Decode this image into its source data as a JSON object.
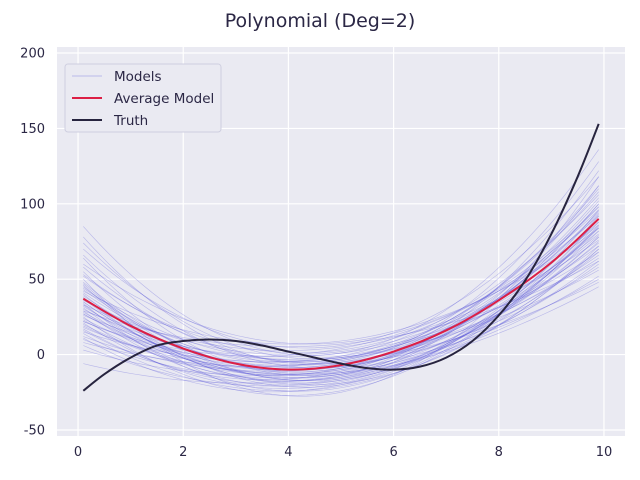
{
  "chart_data": {
    "type": "line",
    "title": "Polynomial (Deg=2)",
    "xlabel": "",
    "ylabel": "",
    "xlim": [
      -0.4,
      10.4
    ],
    "ylim": [
      -54,
      204
    ],
    "xticks": [
      0,
      2,
      4,
      6,
      8,
      10
    ],
    "yticks": [
      -50,
      0,
      50,
      100,
      150,
      200
    ],
    "grid": true,
    "legend": {
      "placement": "top-left",
      "entries": [
        "Models",
        "Average Model",
        "Truth"
      ]
    },
    "colors": {
      "background": "#eaeaf2",
      "grid": "#ffffff",
      "models": "#4a47d6",
      "average": "#dc1f45",
      "truth": "#27243f"
    },
    "series": [
      {
        "name": "Average Model",
        "x": [
          0.1,
          1,
          2,
          3,
          4,
          5,
          6,
          7,
          8,
          9,
          9.9
        ],
        "y": [
          37,
          19,
          4,
          -6,
          -10,
          -7,
          2,
          16,
          36,
          61,
          90
        ]
      },
      {
        "name": "Truth",
        "x": [
          0.1,
          0.5,
          1,
          1.5,
          2,
          2.5,
          3,
          3.5,
          4,
          4.5,
          5,
          5.5,
          6,
          6.5,
          7,
          7.5,
          8,
          8.5,
          9,
          9.5,
          9.9
        ],
        "y": [
          -24,
          -13,
          -2,
          6,
          9,
          10,
          9,
          6,
          2,
          -2,
          -6,
          -9,
          -10,
          -8,
          -2,
          9,
          26,
          49,
          80,
          118,
          153
        ]
      }
    ],
    "models": [
      {
        "x": [
          0.1,
          5.0,
          9.9
        ],
        "y": [
          37,
          -7,
          90
        ]
      },
      {
        "x": [
          0.1,
          5.0,
          9.9
        ],
        "y": [
          85,
          1,
          136
        ]
      },
      {
        "x": [
          0.1,
          5.0,
          9.9
        ],
        "y": [
          78,
          -5,
          128
        ]
      },
      {
        "x": [
          0.1,
          5.0,
          9.9
        ],
        "y": [
          70,
          6,
          118
        ]
      },
      {
        "x": [
          0.1,
          5.0,
          9.9
        ],
        "y": [
          64,
          -12,
          122
        ]
      },
      {
        "x": [
          0.1,
          5.0,
          9.9
        ],
        "y": [
          58,
          -3,
          108
        ]
      },
      {
        "x": [
          0.1,
          5.0,
          9.9
        ],
        "y": [
          55,
          -15,
          112
        ]
      },
      {
        "x": [
          0.1,
          5.0,
          9.9
        ],
        "y": [
          52,
          3,
          98
        ]
      },
      {
        "x": [
          0.1,
          5.0,
          9.9
        ],
        "y": [
          48,
          -9,
          104
        ]
      },
      {
        "x": [
          0.1,
          5.0,
          9.9
        ],
        "y": [
          46,
          -20,
          96
        ]
      },
      {
        "x": [
          0.1,
          5.0,
          9.9
        ],
        "y": [
          44,
          -2,
          88
        ]
      },
      {
        "x": [
          0.1,
          5.0,
          9.9
        ],
        "y": [
          42,
          9,
          84
        ]
      },
      {
        "x": [
          0.1,
          5.0,
          9.9
        ],
        "y": [
          40,
          -13,
          100
        ]
      },
      {
        "x": [
          0.1,
          5.0,
          9.9
        ],
        "y": [
          39,
          -6,
          93
        ]
      },
      {
        "x": [
          0.1,
          5.0,
          9.9
        ],
        "y": [
          38,
          -17,
          86
        ]
      },
      {
        "x": [
          0.1,
          5.0,
          9.9
        ],
        "y": [
          36,
          2,
          80
        ]
      },
      {
        "x": [
          0.1,
          5.0,
          9.9
        ],
        "y": [
          35,
          -10,
          95
        ]
      },
      {
        "x": [
          0.1,
          5.0,
          9.9
        ],
        "y": [
          34,
          -22,
          90
        ]
      },
      {
        "x": [
          0.1,
          5.0,
          9.9
        ],
        "y": [
          33,
          5,
          76
        ]
      },
      {
        "x": [
          0.1,
          5.0,
          9.9
        ],
        "y": [
          32,
          -8,
          84
        ]
      },
      {
        "x": [
          0.1,
          5.0,
          9.9
        ],
        "y": [
          31,
          -14,
          102
        ]
      },
      {
        "x": [
          0.1,
          5.0,
          9.9
        ],
        "y": [
          30,
          -1,
          72
        ]
      },
      {
        "x": [
          0.1,
          5.0,
          9.9
        ],
        "y": [
          29,
          -18,
          92
        ]
      },
      {
        "x": [
          0.1,
          5.0,
          9.9
        ],
        "y": [
          28,
          -4,
          82
        ]
      },
      {
        "x": [
          0.1,
          5.0,
          9.9
        ],
        "y": [
          27,
          -11,
          75
        ]
      },
      {
        "x": [
          0.1,
          5.0,
          9.9
        ],
        "y": [
          26,
          1,
          68
        ]
      },
      {
        "x": [
          0.1,
          5.0,
          9.9
        ],
        "y": [
          25,
          -24,
          88
        ]
      },
      {
        "x": [
          0.1,
          5.0,
          9.9
        ],
        "y": [
          24,
          -7,
          79
        ]
      },
      {
        "x": [
          0.1,
          5.0,
          9.9
        ],
        "y": [
          23,
          -15,
          70
        ]
      },
      {
        "x": [
          0.1,
          5.0,
          9.9
        ],
        "y": [
          22,
          -3,
          64
        ]
      },
      {
        "x": [
          0.1,
          5.0,
          9.9
        ],
        "y": [
          21,
          -19,
          85
        ]
      },
      {
        "x": [
          0.1,
          5.0,
          9.9
        ],
        "y": [
          20,
          -9,
          74
        ]
      },
      {
        "x": [
          0.1,
          5.0,
          9.9
        ],
        "y": [
          19,
          -12,
          60
        ]
      },
      {
        "x": [
          0.1,
          5.0,
          9.9
        ],
        "y": [
          18,
          -6,
          66
        ]
      },
      {
        "x": [
          0.1,
          5.0,
          9.9
        ],
        "y": [
          17,
          -16,
          78
        ]
      },
      {
        "x": [
          0.1,
          5.0,
          9.9
        ],
        "y": [
          15,
          -2,
          56
        ]
      },
      {
        "x": [
          0.1,
          5.0,
          9.9
        ],
        "y": [
          14,
          -21,
          70
        ]
      },
      {
        "x": [
          0.1,
          5.0,
          9.9
        ],
        "y": [
          12,
          -8,
          58
        ]
      },
      {
        "x": [
          0.1,
          5.0,
          9.9
        ],
        "y": [
          10,
          -13,
          52
        ]
      },
      {
        "x": [
          0.1,
          5.0,
          9.9
        ],
        "y": [
          8,
          -5,
          48
        ]
      },
      {
        "x": [
          0.1,
          5.0,
          9.9
        ],
        "y": [
          6,
          -17,
          62
        ]
      },
      {
        "x": [
          0.1,
          5.0,
          9.9
        ],
        "y": [
          3,
          -10,
          50
        ]
      },
      {
        "x": [
          0.1,
          5.0,
          9.9
        ],
        "y": [
          -6,
          -14,
          45
        ]
      },
      {
        "x": [
          0.1,
          5.0,
          9.9
        ],
        "y": [
          60,
          8,
          92
        ]
      },
      {
        "x": [
          0.1,
          5.0,
          9.9
        ],
        "y": [
          50,
          -25,
          118
        ]
      },
      {
        "x": [
          0.1,
          5.0,
          9.9
        ],
        "y": [
          41,
          -1,
          106
        ]
      },
      {
        "x": [
          0.1,
          5.0,
          9.9
        ],
        "y": [
          45,
          -12,
          78
        ]
      },
      {
        "x": [
          0.1,
          5.0,
          9.9
        ],
        "y": [
          33,
          -9,
          110
        ]
      },
      {
        "x": [
          0.1,
          5.0,
          9.9
        ],
        "y": [
          27,
          -3,
          96
        ]
      },
      {
        "x": [
          0.1,
          5.0,
          9.9
        ],
        "y": [
          37,
          -19,
          72
        ]
      },
      {
        "x": [
          0.1,
          5.0,
          9.9
        ],
        "y": [
          22,
          4,
          86
        ]
      },
      {
        "x": [
          0.1,
          5.0,
          9.9
        ],
        "y": [
          66,
          -8,
          100
        ]
      },
      {
        "x": [
          0.1,
          5.0,
          9.9
        ],
        "y": [
          74,
          -2,
          112
        ]
      },
      {
        "x": [
          0.1,
          5.0,
          9.9
        ],
        "y": [
          16,
          -11,
          94
        ]
      },
      {
        "x": [
          0.1,
          5.0,
          9.9
        ],
        "y": [
          11,
          -20,
          82
        ]
      },
      {
        "x": [
          0.1,
          5.0,
          9.9
        ],
        "y": [
          53,
          -6,
          68
        ]
      },
      {
        "x": [
          0.1,
          5.0,
          9.9
        ],
        "y": [
          47,
          -16,
          90
        ]
      },
      {
        "x": [
          0.1,
          5.0,
          9.9
        ],
        "y": [
          29,
          7,
          62
        ]
      },
      {
        "x": [
          0.1,
          5.0,
          9.9
        ],
        "y": [
          35,
          -13,
          84
        ]
      },
      {
        "x": [
          0.1,
          5.0,
          9.9
        ],
        "y": [
          43,
          -4,
          98
        ]
      }
    ]
  }
}
